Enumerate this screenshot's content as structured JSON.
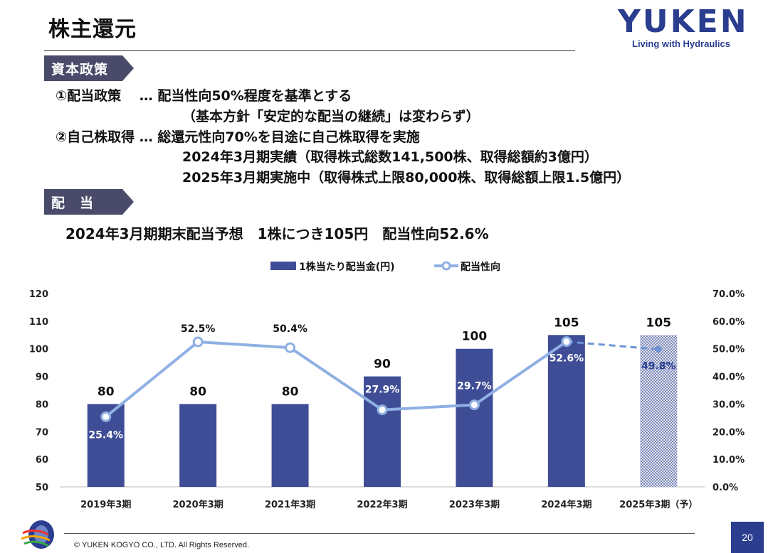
{
  "header": {
    "title": "株主還元",
    "logo_main": "YUKEN",
    "logo_sub": "Living with Hydraulics"
  },
  "sections": {
    "capital_policy_tag": "資本政策",
    "dividend_tag": "配　当"
  },
  "policy": {
    "line1": "①配当政策　 … 配当性向50%程度を基準とする",
    "line2": "（基本方針「安定的な配当の継続」は変わらず）",
    "line3": "②自己株取得 … 総還元性向70%を目途に自己株取得を実施",
    "line4": "2024年3月期実績（取得株式総数141,500株、取得総額約3億円）",
    "line5": "2025年3月期実施中（取得株式上限80,000株、取得総額上限1.5億円）"
  },
  "headline": "2024年3月期期末配当予想　1株につき105円　配当性向52.6%",
  "footer": {
    "copyright": "© YUKEN KOGYO CO., LTD. All Rights Reserved.",
    "page_number": "20"
  },
  "colors": {
    "bar": "#3f4d96",
    "line": "#8fb0e3",
    "tag": "#4a4a6a",
    "accent": "#2a3d8f"
  },
  "chart_data": {
    "type": "bar",
    "categories": [
      "2019年3期",
      "2020年3期",
      "2021年3期",
      "2022年3期",
      "2023年3期",
      "2024年3期",
      "2025年3期（予）"
    ],
    "series": [
      {
        "name": "1株当たり配当金(円)",
        "type": "bar",
        "axis": "left",
        "values": [
          80,
          80,
          80,
          90,
          100,
          105,
          105
        ],
        "labels": [
          "80",
          "80",
          "80",
          "90",
          "100",
          "105",
          "105"
        ],
        "forecast_index": 6
      },
      {
        "name": "配当性向",
        "type": "line",
        "axis": "right",
        "values": [
          25.4,
          52.5,
          50.4,
          27.9,
          29.7,
          52.6,
          49.8
        ],
        "labels": [
          "25.4%",
          "52.5%",
          "50.4%",
          "27.9%",
          "29.7%",
          "52.6%",
          "49.8%"
        ],
        "forecast_index": 6
      }
    ],
    "y_left": {
      "min": 50,
      "max": 120,
      "ticks": [
        "50",
        "60",
        "70",
        "80",
        "90",
        "100",
        "110",
        "120"
      ]
    },
    "y_right": {
      "min": 0,
      "max": 70,
      "ticks": [
        "0.0%",
        "10.0%",
        "20.0%",
        "30.0%",
        "40.0%",
        "50.0%",
        "60.0%",
        "70.0%"
      ]
    },
    "grid": false,
    "legend_position": "top"
  }
}
